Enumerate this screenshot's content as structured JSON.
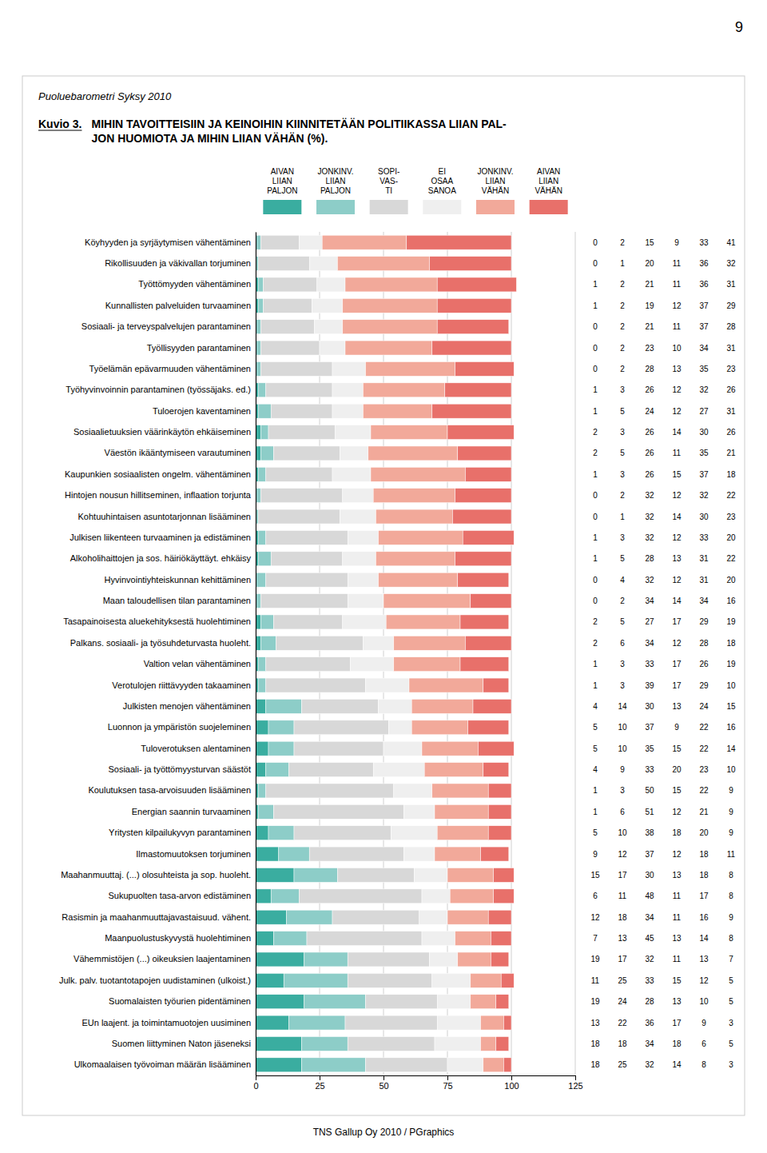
{
  "chart_data": {
    "type": "bar",
    "orientation": "horizontal",
    "stacked": true,
    "data_labels": true,
    "grid": true,
    "legend": "top",
    "subtitle": "Puoluebarometri Syksy 2010",
    "title": "MIHIN TAVOITTEISIIN JA KEINOIHIN KIINNITETÄÄN POLITIIKASSA LIIAN PAL-\nJON HUOMIOTA JA MIHIN LIIAN VÄHÄN (%).",
    "annotations": [
      "Kuvio 3.",
      "TNS Gallup Oy 2010 / PGraphics",
      "9"
    ],
    "categories": [
      "Köyhyyden ja syrjäytymisen vähentäminen",
      "Rikollisuuden ja väkivallan torjuminen",
      "Työttömyyden vähentäminen",
      "Kunnallisten palveluiden turvaaminen",
      "Sosiaali- ja terveyspalvelujen parantaminen",
      "Työllisyyden parantaminen",
      "Työelämän epävarmuuden vähentäminen",
      "Työhyvinvoinnin parantaminen (työssäjaks. ed.)",
      "Tuloerojen kaventaminen",
      "Sosiaalietuuksien väärinkäytön ehkäiseminen",
      "Väestön ikääntymiseen varautuminen",
      "Kaupunkien sosiaalisten ongelm. vähentäminen",
      "Hintojen nousun hillitseminen, inflaation torjunta",
      "Kohtuuhintaisen asuntotarjonnan lisääminen",
      "Julkisen liikenteen turvaaminen ja edistäminen",
      "Alkoholihaittojen ja sos. häiriökäyttäyt. ehkäisy",
      "Hyvinvointiyhteiskunnan kehittäminen",
      "Maan taloudellisen tilan parantaminen",
      "Tasapainoisesta aluekehityksestä huolehtiminen",
      "Palkans. sosiaali- ja työsuhdeturvasta huoleht.",
      "Valtion velan vähentäminen",
      "Verotulojen riittävyyden takaaminen",
      "Julkisten menojen vähentäminen",
      "Luonnon ja ympäristön suojeleminen",
      "Tuloverotuksen alentaminen",
      "Sosiaali- ja työttömyysturvan säästöt",
      "Koulutuksen tasa-arvoisuuden lisääminen",
      "Energian saannin turvaaminen",
      "Yritysten kilpailukyvyn parantaminen",
      "Ilmastomuutoksen torjuminen",
      "Maahanmuuttaj. (...) olosuhteista ja sop. huoleht.",
      "Sukupuolten tasa-arvon edistäminen",
      "Rasismin ja maahanmuuttajavastaisuud. vähent.",
      "Maanpuolustuskyvystä huolehtiminen",
      "Vähemmistöjen (...) oikeuksien laajentaminen",
      "Julk. palv. tuotantotapojen uudistaminen (ulkoist.)",
      "Suomalaisten työurien pidentäminen",
      "EUn laajent. ja toimintamuotojen uusiminen",
      "Suomen liittyminen Naton jäseneksi",
      "Ulkomaalaisen työvoiman määrän lisääminen"
    ],
    "series": [
      {
        "name": "AIVAN\nLIIAN\nPALJON",
        "color": "#3aada0",
        "values": [
          0,
          0,
          1,
          1,
          0,
          0,
          0,
          1,
          1,
          2,
          2,
          1,
          0,
          0,
          1,
          1,
          0,
          0,
          2,
          2,
          1,
          1,
          4,
          5,
          5,
          4,
          1,
          1,
          5,
          9,
          15,
          6,
          12,
          7,
          19,
          11,
          19,
          13,
          18,
          18
        ]
      },
      {
        "name": "JONKINV.\nLIIAN\nPALJON",
        "color": "#8dcdc8",
        "values": [
          2,
          1,
          2,
          2,
          2,
          2,
          2,
          3,
          5,
          3,
          5,
          3,
          2,
          1,
          3,
          5,
          4,
          2,
          5,
          6,
          3,
          3,
          14,
          10,
          10,
          9,
          3,
          6,
          10,
          12,
          17,
          11,
          18,
          13,
          17,
          25,
          24,
          22,
          18,
          25
        ]
      },
      {
        "name": "SOPI-\nVAS-\nTI",
        "color": "#d8d8d8",
        "values": [
          15,
          20,
          21,
          19,
          21,
          23,
          28,
          26,
          24,
          26,
          26,
          26,
          32,
          32,
          32,
          28,
          32,
          34,
          27,
          34,
          33,
          39,
          30,
          37,
          35,
          33,
          50,
          51,
          38,
          37,
          30,
          48,
          34,
          45,
          32,
          33,
          28,
          36,
          34,
          32
        ]
      },
      {
        "name": "EI\nOSAA\nSANOA",
        "color": "#efefef",
        "values": [
          9,
          11,
          11,
          12,
          11,
          10,
          13,
          12,
          12,
          14,
          11,
          15,
          12,
          14,
          12,
          13,
          12,
          14,
          17,
          12,
          17,
          17,
          13,
          9,
          15,
          20,
          15,
          12,
          18,
          12,
          13,
          11,
          11,
          13,
          11,
          15,
          13,
          17,
          18,
          14
        ]
      },
      {
        "name": "JONKINV.\nLIIAN\nVÄHÄN",
        "color": "#f2a99a",
        "values": [
          33,
          36,
          36,
          37,
          37,
          34,
          35,
          32,
          27,
          30,
          35,
          37,
          32,
          30,
          33,
          31,
          31,
          34,
          29,
          28,
          26,
          29,
          24,
          22,
          22,
          23,
          22,
          21,
          20,
          18,
          18,
          17,
          16,
          14,
          13,
          12,
          10,
          9,
          6,
          8
        ]
      },
      {
        "name": "AIVAN\nLIIAN\nVÄHÄN",
        "color": "#e8706a",
        "values": [
          41,
          32,
          31,
          29,
          28,
          31,
          23,
          26,
          31,
          26,
          21,
          18,
          22,
          23,
          20,
          22,
          20,
          16,
          19,
          18,
          19,
          10,
          15,
          16,
          14,
          10,
          9,
          9,
          9,
          11,
          8,
          8,
          9,
          8,
          7,
          5,
          5,
          3,
          5,
          3
        ]
      }
    ],
    "xlim": [
      0,
      125
    ],
    "xticks": [
      0,
      25,
      50,
      75,
      100,
      125
    ]
  }
}
